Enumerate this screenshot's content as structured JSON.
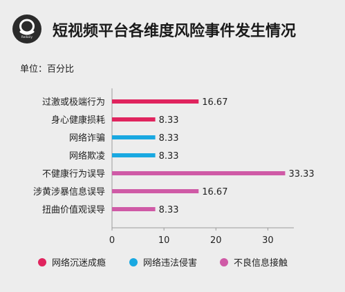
{
  "header": {
    "title": "短视频平台各维度风险事件发生情况",
    "unit": "单位：百分比",
    "logo_text": "Redaily"
  },
  "colors": {
    "addiction": "#e0245e",
    "illegal": "#19a8e1",
    "harmful": "#cf5aa6",
    "axis": "#9a9a9a",
    "text": "#222222"
  },
  "chart_data": {
    "type": "bar",
    "orientation": "horizontal",
    "title": "短视频平台各维度风险事件发生情况",
    "unit_label": "单位：百分比",
    "categories": [
      "过激或极端行为",
      "身心健康损耗",
      "网络诈骗",
      "网络欺凌",
      "不健康行为误导",
      "涉黄涉暴信息误导",
      "扭曲价值观误导"
    ],
    "values": [
      16.67,
      8.33,
      8.33,
      8.33,
      33.33,
      16.67,
      8.33
    ],
    "value_labels": [
      "16.67",
      "8.33",
      "8.33",
      "8.33",
      "33.33",
      "16.67",
      "8.33"
    ],
    "bar_group": [
      "addiction",
      "addiction",
      "illegal",
      "illegal",
      "harmful",
      "harmful",
      "harmful"
    ],
    "xlim": [
      0,
      35
    ],
    "xticks": [
      0,
      10,
      20,
      30
    ],
    "grid": false,
    "legend_position": "bottom",
    "legend": [
      {
        "key": "addiction",
        "name": "网络沉迷成瘾",
        "color": "#e0245e"
      },
      {
        "key": "illegal",
        "name": "网络违法侵害",
        "color": "#19a8e1"
      },
      {
        "key": "harmful",
        "name": "不良信息接触",
        "color": "#cf5aa6"
      }
    ]
  }
}
